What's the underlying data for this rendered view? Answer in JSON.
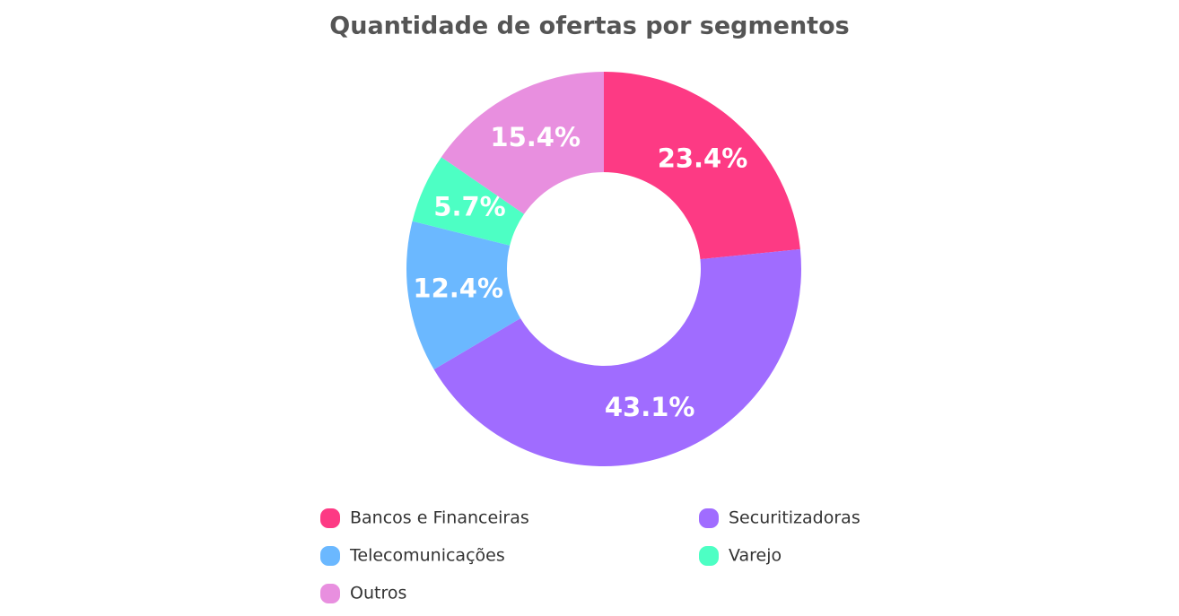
{
  "chart_data": {
    "type": "donut",
    "title": "Quantidade de ofertas por segmentos",
    "categories": [
      "Bancos e Financeiras",
      "Securitizadoras",
      "Telecomunicações",
      "Varejo",
      "Outros"
    ],
    "values": [
      23.4,
      43.1,
      12.4,
      5.7,
      15.4
    ],
    "value_labels": [
      "23.4%",
      "43.1%",
      "12.4%",
      "5.7%",
      "15.4%"
    ],
    "colors": [
      "#fd3a84",
      "#a06cff",
      "#6bb8ff",
      "#4dffc4",
      "#e88fdf"
    ]
  }
}
